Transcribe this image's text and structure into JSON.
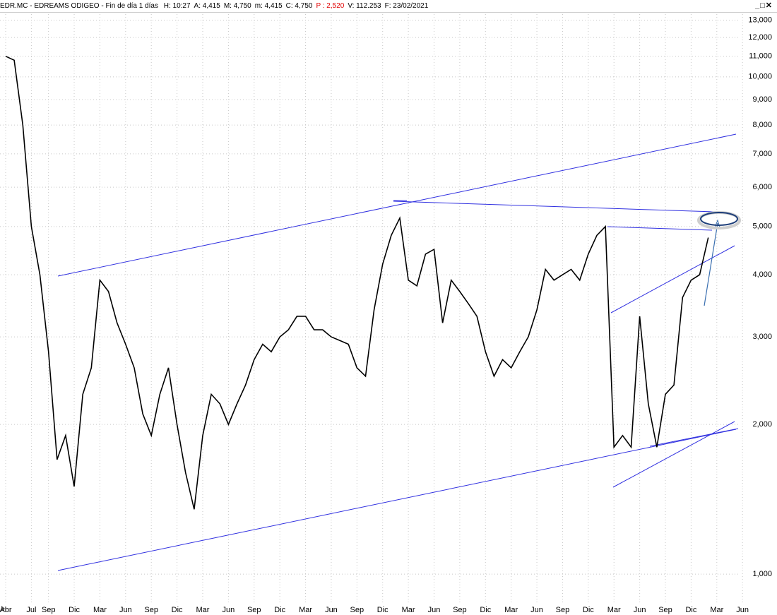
{
  "header": {
    "title": "EDR.MC - EDREAMS ODIGEO - Fin de día 1 días",
    "info": [
      "H: 10:27",
      "A: 4,415",
      "M: 4,750",
      "m: 4,415",
      "C: 4,750"
    ],
    "info_highlight": "P : 2,520",
    "info_tail": [
      "V: 112.253",
      "F: 23/02/2021"
    ]
  },
  "chart_data": {
    "type": "line",
    "log_scale": true,
    "grid": true,
    "categories": [
      "Abr",
      null,
      null,
      "Jul",
      null,
      "Sep",
      null,
      null,
      "Dic",
      null,
      null,
      "Mar",
      null,
      null,
      "Jun",
      null,
      null,
      "Sep",
      null,
      null,
      "Dic",
      null,
      null,
      "Mar",
      null,
      null,
      "Jun",
      null,
      null,
      "Sep",
      null,
      null,
      "Dic",
      null,
      null,
      "Mar",
      null,
      null,
      "Jun",
      null,
      null,
      "Sep",
      null,
      null,
      "Dic",
      null,
      null,
      "Mar",
      null,
      null,
      "Jun",
      null,
      null,
      "Sep",
      null,
      null,
      "Dic",
      null,
      null,
      "Mar",
      null,
      null,
      "Jun",
      null,
      null,
      "Sep",
      null,
      null,
      "Dic",
      null,
      null,
      "Mar",
      null,
      null,
      "Jun",
      null,
      null,
      "Sep",
      null,
      null,
      "Dic",
      null,
      null,
      "Mar",
      null,
      null,
      "Jun"
    ],
    "series": [
      {
        "name": "EDR.MC",
        "color": "#000000",
        "values": [
          11000,
          10800,
          8000,
          5000,
          4000,
          2800,
          1700,
          1900,
          1500,
          2300,
          2600,
          3900,
          3700,
          3200,
          2900,
          2600,
          2100,
          1900,
          2300,
          2600,
          2000,
          1600,
          1350,
          1900,
          2300,
          2200,
          2000,
          2200,
          2400,
          2700,
          2900,
          2800,
          3000,
          3100,
          3300,
          3300,
          3100,
          3100,
          3000,
          2950,
          2900,
          2600,
          2500,
          3400,
          4200,
          4800,
          5200,
          3900,
          3800,
          4400,
          4500,
          3200,
          3900,
          3700,
          3500,
          3300,
          2800,
          2500,
          2700,
          2600,
          2800,
          3000,
          3400,
          4100,
          3900,
          4000,
          4100,
          3900,
          4400,
          4800,
          5000,
          1800,
          1900,
          1800,
          3300,
          2200,
          1800,
          2300,
          2400,
          3600,
          3900,
          4000,
          4750,
          null,
          null,
          null,
          null
        ]
      }
    ],
    "ylim": [
      872,
      13370
    ],
    "yticks": [
      {
        "value": 1000,
        "label": "1,000"
      },
      {
        "value": 2000,
        "label": "2,000"
      },
      {
        "value": 3000,
        "label": "3,000"
      },
      {
        "value": 4000,
        "label": "4,000"
      },
      {
        "value": 5000,
        "label": "5,000"
      },
      {
        "value": 6000,
        "label": "6,000"
      },
      {
        "value": 7000,
        "label": "7,000"
      },
      {
        "value": 8000,
        "label": "8,000"
      },
      {
        "value": 9000,
        "label": "9,000"
      },
      {
        "value": 10000,
        "label": "10,000"
      },
      {
        "value": 11000,
        "label": "11,000"
      },
      {
        "value": 12000,
        "label": "12,000"
      },
      {
        "value": 13000,
        "label": "13,000"
      }
    ]
  }
}
